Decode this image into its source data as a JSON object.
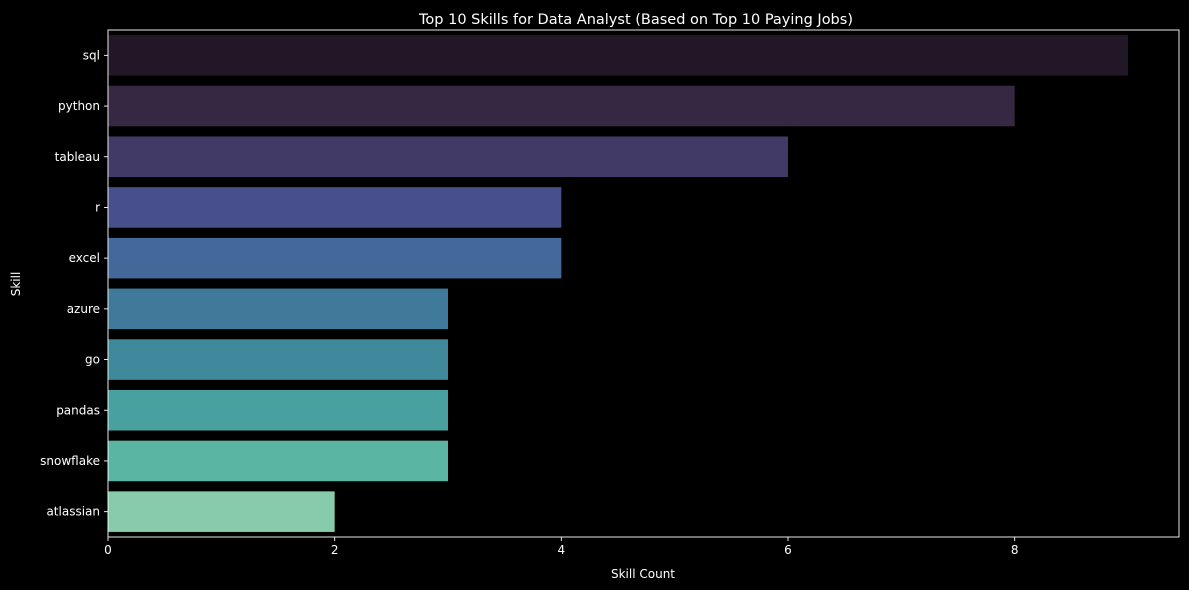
{
  "chart_data": {
    "type": "bar",
    "orientation": "horizontal",
    "title": "Top 10 Skills for Data Analyst (Based on Top 10 Paying Jobs)",
    "xlabel": "Skill Count",
    "ylabel": "Skill",
    "categories": [
      "sql",
      "python",
      "tableau",
      "r",
      "excel",
      "azure",
      "go",
      "pandas",
      "snowflake",
      "atlassian"
    ],
    "values": [
      9,
      8,
      6,
      4,
      4,
      3,
      3,
      3,
      3,
      2
    ],
    "xlim": [
      0,
      9.45
    ],
    "xticks": [
      "0",
      "2",
      "4",
      "6",
      "8"
    ],
    "grid": false,
    "legend": "none",
    "colors": [
      "#211726",
      "#362742",
      "#423a66",
      "#47508a",
      "#43699a",
      "#3f7a9a",
      "#40899c",
      "#48a09f",
      "#5ab5a3",
      "#87cbab"
    ],
    "background": "#000000",
    "axis_color": "#ffffff"
  }
}
